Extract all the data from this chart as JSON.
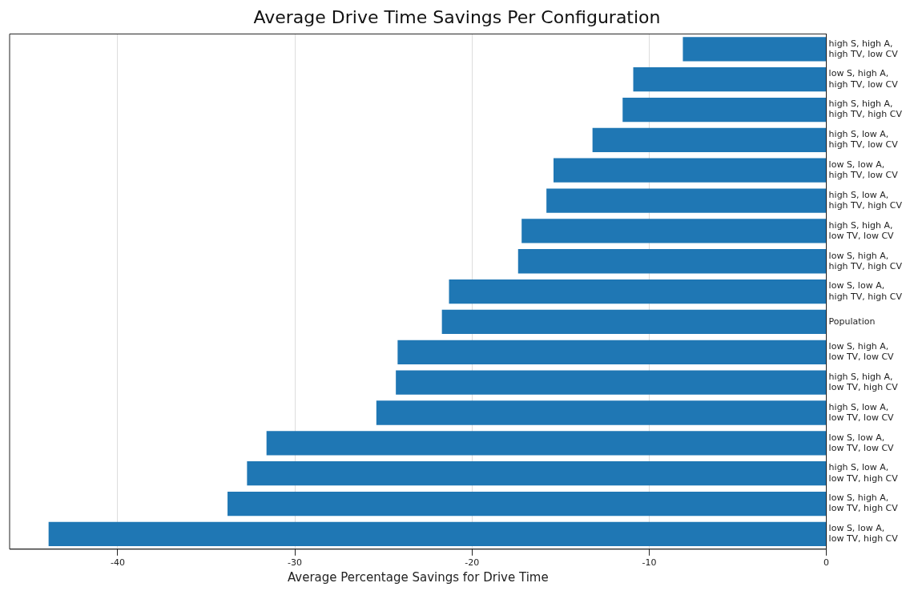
{
  "chart_data": {
    "type": "bar",
    "orientation": "horizontal",
    "title": "Average Drive Time Savings Per Configuration",
    "xlabel": "Average Percentage Savings for Drive Time",
    "categories": [
      "high S, high A,\nhigh TV, low CV",
      "low S, high A,\nhigh TV, low CV",
      "high S, high A,\nhigh TV, high CV",
      "high S, low A,\nhigh TV, low CV",
      "low S, low A,\nhigh TV, low CV",
      "high S, low A,\nhigh TV, high CV",
      "high S, high A,\nlow TV, low CV",
      "low S, high A,\nhigh TV, high CV",
      "low S, low A,\nhigh TV, high CV",
      "Population",
      "low S, high A,\nlow TV, low CV",
      "high S, high A,\nlow TV, high CV",
      "high S, low A,\nlow TV, low CV",
      "low S, low A,\nlow TV, low CV",
      "high S, low A,\nlow TV, high CV",
      "low S, high A,\nlow TV, high CV",
      "low S, low A,\nlow TV, high CV"
    ],
    "values": [
      -8.1,
      -10.9,
      -11.5,
      -13.2,
      -15.4,
      -15.8,
      -17.2,
      -17.4,
      -21.3,
      -21.7,
      -24.2,
      -24.3,
      -25.4,
      -31.6,
      -32.7,
      -33.8,
      -43.9
    ],
    "color": "#1f77b4",
    "xlim": [
      -46.1,
      0
    ],
    "xticks": [
      -40,
      -30,
      -20,
      -10,
      0
    ],
    "grid": "x",
    "legend": false
  }
}
